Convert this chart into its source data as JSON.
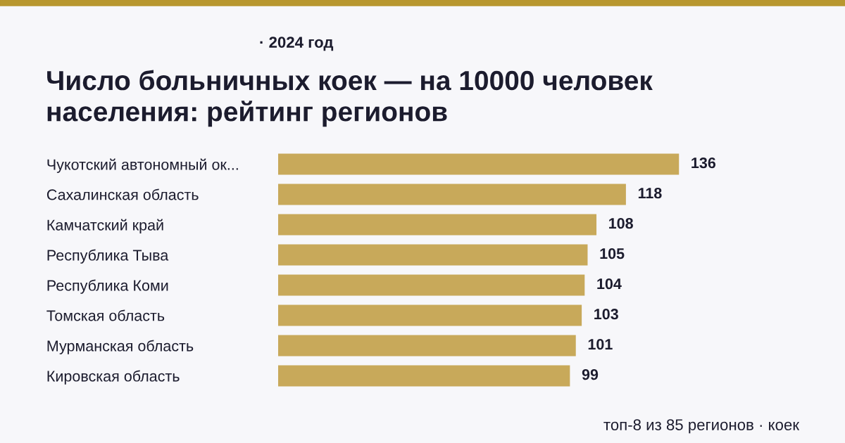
{
  "chart_data": {
    "type": "bar",
    "orientation": "horizontal",
    "subtitle": "· 2024 год",
    "title": "Число больничных коек — на 10000 человек\nнаселения: рейтинг регионов",
    "categories": [
      "Чукотский автономный ок...",
      "Сахалинская область",
      "Камчатский край",
      "Республика Тыва",
      "Республика Коми",
      "Томская область",
      "Мурманская область",
      "Кировская область"
    ],
    "values": [
      136,
      118,
      108,
      105,
      104,
      103,
      101,
      99
    ],
    "color": "#c8a95a",
    "data_labels": true,
    "grid": false,
    "legend": false,
    "annotations": [
      "топ-8 из 85 регионов · коек"
    ]
  }
}
